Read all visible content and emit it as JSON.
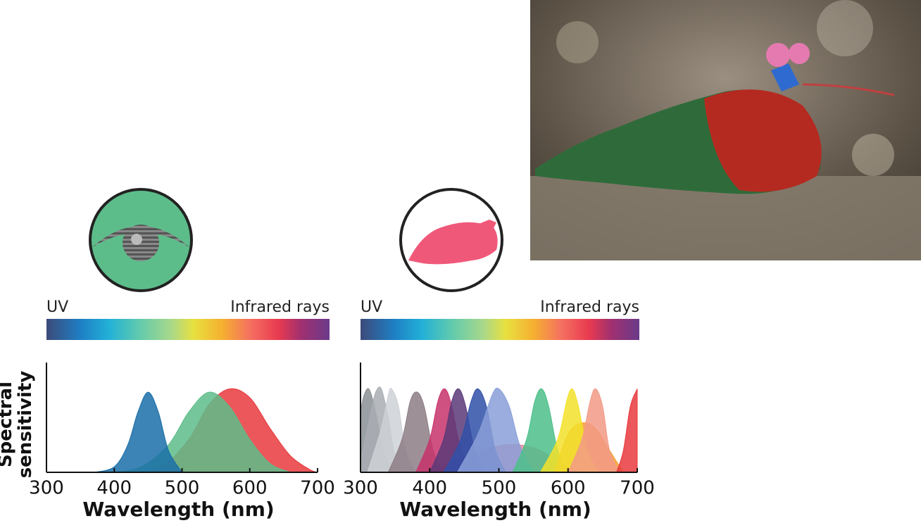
{
  "chart_data": [
    {
      "type": "area",
      "ylabel": "Spectral sensitivity",
      "xlabel": "Wavelength (nm)",
      "spectrum_left": "UV",
      "spectrum_right": "Infrared rays",
      "xlim": [
        300,
        700
      ],
      "xticks": [
        300,
        400,
        500,
        600,
        700
      ],
      "ylim": [
        0,
        1
      ],
      "series": [
        {
          "color": "#e8393d",
          "x": [
            430,
            470,
            510,
            540,
            570,
            600,
            630,
            660,
            690,
            700
          ],
          "values": [
            0,
            0.05,
            0.3,
            0.62,
            0.76,
            0.68,
            0.4,
            0.15,
            0.02,
            0
          ]
        },
        {
          "color": "#5dbd8a",
          "x": [
            400,
            440,
            480,
            510,
            540,
            570,
            600,
            630,
            660
          ],
          "values": [
            0,
            0.05,
            0.25,
            0.55,
            0.73,
            0.6,
            0.3,
            0.08,
            0
          ]
        },
        {
          "color": "#1a6ea8",
          "x": [
            370,
            400,
            420,
            435,
            450,
            465,
            480,
            500
          ],
          "values": [
            0,
            0.05,
            0.25,
            0.55,
            0.73,
            0.55,
            0.2,
            0
          ]
        }
      ]
    },
    {
      "type": "area",
      "xlabel": "Wavelength (nm)",
      "spectrum_left": "UV",
      "spectrum_right": "Infrared rays",
      "xlim": [
        300,
        700
      ],
      "xticks": [
        300,
        400,
        500,
        600,
        700
      ],
      "ylim": [
        0,
        1
      ],
      "series": [
        {
          "color": "#e88a96",
          "x": [
            400,
            450,
            500,
            530,
            560,
            590,
            620
          ],
          "values": [
            0,
            0.15,
            0.24,
            0.25,
            0.2,
            0.08,
            0
          ]
        },
        {
          "color": "#8a8f95",
          "x": [
            300,
            305,
            312,
            320,
            330,
            340,
            350
          ],
          "values": [
            0.55,
            0.7,
            0.76,
            0.6,
            0.3,
            0.08,
            0
          ]
        },
        {
          "color": "#a9adb3",
          "x": [
            300,
            315,
            322,
            330,
            340,
            350,
            365
          ],
          "values": [
            0.1,
            0.55,
            0.73,
            0.76,
            0.5,
            0.15,
            0
          ]
        },
        {
          "color": "#ced1d6",
          "x": [
            310,
            330,
            340,
            345,
            355,
            365,
            380
          ],
          "values": [
            0,
            0.4,
            0.7,
            0.76,
            0.6,
            0.2,
            0
          ]
        },
        {
          "color": "#8d7d85",
          "x": [
            340,
            360,
            372,
            382,
            392,
            405,
            420
          ],
          "values": [
            0,
            0.3,
            0.65,
            0.73,
            0.6,
            0.2,
            0
          ]
        },
        {
          "color": "#c7336b",
          "x": [
            380,
            400,
            412,
            422,
            432,
            445,
            460
          ],
          "values": [
            0,
            0.3,
            0.65,
            0.76,
            0.6,
            0.2,
            0
          ]
        },
        {
          "color": "#5a3a78",
          "x": [
            400,
            420,
            432,
            442,
            452,
            465,
            480
          ],
          "values": [
            0,
            0.3,
            0.65,
            0.76,
            0.6,
            0.2,
            0
          ]
        },
        {
          "color": "#3050a8",
          "x": [
            420,
            445,
            460,
            470,
            482,
            495,
            510
          ],
          "values": [
            0,
            0.3,
            0.65,
            0.76,
            0.6,
            0.2,
            0
          ]
        },
        {
          "color": "#8a9fd8",
          "x": [
            440,
            470,
            490,
            500,
            515,
            530,
            550
          ],
          "values": [
            0,
            0.35,
            0.7,
            0.76,
            0.6,
            0.25,
            0
          ]
        },
        {
          "color": "#4cbf8a",
          "x": [
            520,
            540,
            552,
            562,
            572,
            585,
            600
          ],
          "values": [
            0,
            0.3,
            0.65,
            0.76,
            0.6,
            0.2,
            0
          ]
        },
        {
          "color": "#f5a030",
          "x": [
            580,
            600,
            620,
            640,
            660,
            680
          ],
          "values": [
            0,
            0.35,
            0.45,
            0.4,
            0.2,
            0
          ]
        },
        {
          "color": "#f2e22a",
          "x": [
            560,
            585,
            598,
            606,
            615,
            628,
            645
          ],
          "values": [
            0,
            0.3,
            0.65,
            0.76,
            0.6,
            0.2,
            0
          ]
        },
        {
          "color": "#f29a86",
          "x": [
            600,
            620,
            632,
            640,
            650,
            660,
            675
          ],
          "values": [
            0,
            0.3,
            0.65,
            0.76,
            0.6,
            0.2,
            0
          ]
        },
        {
          "color": "#e8393d",
          "x": [
            670,
            680,
            690,
            700
          ],
          "values": [
            0,
            0.2,
            0.6,
            0.76
          ]
        }
      ]
    }
  ]
}
